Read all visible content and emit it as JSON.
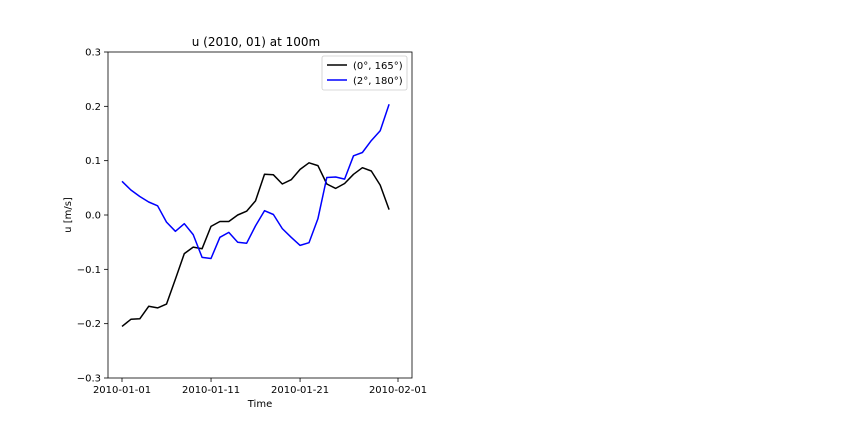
{
  "chart_data": {
    "type": "line",
    "title": "u (2010, 01) at 100m",
    "xlabel": "Time",
    "ylabel": "u [m/s]",
    "ylim": [
      -0.3,
      0.3
    ],
    "yticks": [
      "0.3",
      "0.2",
      "0.1",
      "0.0",
      "−0.1",
      "−0.2",
      "−0.3"
    ],
    "ytick_values": [
      0.3,
      0.2,
      0.1,
      0.0,
      -0.1,
      -0.2,
      -0.3
    ],
    "xticks": [
      "2010-01-01",
      "2010-01-11",
      "2010-01-21",
      "2010-02-01"
    ],
    "xtick_dates": [
      "2010-01-01",
      "2010-01-11",
      "2010-01-21",
      "2010-02-01"
    ],
    "legend_position": "top-right",
    "grid": false,
    "x": [
      "2010-01-01",
      "2010-01-02",
      "2010-01-03",
      "2010-01-04",
      "2010-01-05",
      "2010-01-06",
      "2010-01-07",
      "2010-01-08",
      "2010-01-09",
      "2010-01-10",
      "2010-01-11",
      "2010-01-12",
      "2010-01-13",
      "2010-01-14",
      "2010-01-15",
      "2010-01-16",
      "2010-01-17",
      "2010-01-18",
      "2010-01-19",
      "2010-01-20",
      "2010-01-21",
      "2010-01-22",
      "2010-01-23",
      "2010-01-24",
      "2010-01-25",
      "2010-01-26",
      "2010-01-27",
      "2010-01-28",
      "2010-01-29",
      "2010-01-30",
      "2010-01-31",
      "2010-02-01"
    ],
    "series": [
      {
        "name": "(0°, 165°)",
        "color": "#000000",
        "values": [
          -0.205,
          -0.192,
          -0.191,
          -0.168,
          -0.171,
          -0.164,
          -0.118,
          -0.071,
          -0.059,
          -0.062,
          -0.021,
          -0.012,
          -0.012,
          0.0,
          0.007,
          0.026,
          0.075,
          0.074,
          0.057,
          0.065,
          0.084,
          0.096,
          0.091,
          0.057,
          0.049,
          0.058,
          0.075,
          0.087,
          0.081,
          0.055,
          0.01,
          null
        ]
      },
      {
        "name": "(2°, 180°)",
        "color": "#0000ff",
        "values": [
          0.062,
          0.046,
          0.034,
          0.024,
          0.017,
          -0.013,
          -0.03,
          -0.016,
          -0.036,
          -0.078,
          -0.08,
          -0.041,
          -0.032,
          -0.05,
          -0.052,
          -0.02,
          0.008,
          0.001,
          -0.025,
          -0.041,
          -0.056,
          -0.051,
          -0.007,
          0.069,
          0.07,
          0.066,
          0.109,
          0.115,
          0.137,
          0.155,
          0.204,
          null
        ]
      }
    ]
  }
}
